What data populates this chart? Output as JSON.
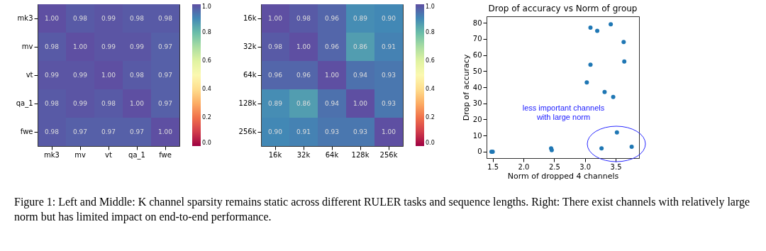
{
  "chart_data": [
    {
      "type": "heatmap",
      "categories": [
        "mk3",
        "mv",
        "vt",
        "qa_1",
        "fwe"
      ],
      "y_categories": [
        "mk3",
        "mv",
        "vt",
        "qa_1",
        "fwe"
      ],
      "cells": [
        [
          1.0,
          0.98,
          0.99,
          0.98,
          0.98
        ],
        [
          0.98,
          1.0,
          0.99,
          0.99,
          0.97
        ],
        [
          0.99,
          0.99,
          1.0,
          0.98,
          0.97
        ],
        [
          0.98,
          0.99,
          0.98,
          1.0,
          0.97
        ],
        [
          0.98,
          0.97,
          0.97,
          0.97,
          1.0
        ]
      ],
      "cell_labels": [
        [
          "1.00",
          "0.98",
          "0.99",
          "0.98",
          "0.98"
        ],
        [
          "0.98",
          "1.00",
          "0.99",
          "0.99",
          "0.97"
        ],
        [
          "0.99",
          "0.99",
          "1.00",
          "0.98",
          "0.97"
        ],
        [
          "0.98",
          "0.99",
          "0.98",
          "1.00",
          "0.97"
        ],
        [
          "0.98",
          "0.97",
          "0.97",
          "0.97",
          "1.00"
        ]
      ],
      "clim": [
        0,
        1
      ],
      "cticks": [
        {
          "value": 0,
          "label": "0.0"
        },
        {
          "value": 0.2,
          "label": "0.2"
        },
        {
          "value": 0.4,
          "label": "0.4"
        },
        {
          "value": 0.6,
          "label": "0.6"
        },
        {
          "value": 0.8,
          "label": "0.8"
        },
        {
          "value": 1,
          "label": "1.0"
        }
      ],
      "annotations": [
        "Figure 1: Left and Middle: K channel sparsity remains static across different RULER tasks and sequence lengths. Right: There exist channels with relatively large norm but has limited impact on end-to-end performance."
      ]
    },
    {
      "type": "heatmap",
      "categories": [
        "16k",
        "32k",
        "64k",
        "128k",
        "256k"
      ],
      "y_categories": [
        "16k",
        "32k",
        "64k",
        "128k",
        "256k"
      ],
      "cells": [
        [
          1.0,
          0.98,
          0.96,
          0.89,
          0.9
        ],
        [
          0.98,
          1.0,
          0.96,
          0.86,
          0.91
        ],
        [
          0.96,
          0.96,
          1.0,
          0.94,
          0.93
        ],
        [
          0.89,
          0.86,
          0.94,
          1.0,
          0.93
        ],
        [
          0.9,
          0.91,
          0.93,
          0.93,
          1.0
        ]
      ],
      "cell_labels": [
        [
          "1.00",
          "0.98",
          "0.96",
          "0.89",
          "0.90"
        ],
        [
          "0.98",
          "1.00",
          "0.96",
          "0.86",
          "0.91"
        ],
        [
          "0.96",
          "0.96",
          "1.00",
          "0.94",
          "0.93"
        ],
        [
          "0.89",
          "0.86",
          "0.94",
          "1.00",
          "0.93"
        ],
        [
          "0.90",
          "0.91",
          "0.93",
          "0.93",
          "1.00"
        ]
      ],
      "clim": [
        0,
        1
      ],
      "cticks": [
        {
          "value": 0,
          "label": "0.0"
        },
        {
          "value": 0.2,
          "label": "0.2"
        },
        {
          "value": 0.4,
          "label": "0.4"
        },
        {
          "value": 0.6,
          "label": "0.6"
        },
        {
          "value": 0.8,
          "label": "0.8"
        },
        {
          "value": 1,
          "label": "1.0"
        }
      ]
    },
    {
      "type": "scatter",
      "title": "Drop of accuracy vs Norm of group",
      "xlabel": "Norm of dropped 4 channels",
      "ylabel": "Drop of accuracy",
      "x": [
        1.48,
        1.5,
        2.45,
        2.46,
        3.03,
        3.09,
        3.09,
        3.2,
        3.27,
        3.32,
        3.42,
        3.46,
        3.52,
        3.63,
        3.64,
        3.76
      ],
      "series": [
        {
          "color": "#1f77b4",
          "values": [
            0,
            0,
            2,
            1,
            43,
            77,
            54,
            75,
            2,
            37,
            79,
            34,
            12,
            68,
            56,
            3
          ]
        }
      ],
      "marker": "circle",
      "grid": false,
      "xlim": [
        1.4,
        3.88
      ],
      "xticks": [
        {
          "value": 1.5,
          "label": "1.5"
        },
        {
          "value": 2,
          "label": "2.0"
        },
        {
          "value": 2.5,
          "label": "2.5"
        },
        {
          "value": 3,
          "label": "3.0"
        },
        {
          "value": 3.5,
          "label": "3.5"
        }
      ],
      "ylim": [
        -4,
        84
      ],
      "yticks": [
        0,
        10,
        20,
        30,
        40,
        50,
        60,
        70,
        80
      ],
      "annotations": [
        "less important channels\nwith large norm"
      ]
    }
  ]
}
